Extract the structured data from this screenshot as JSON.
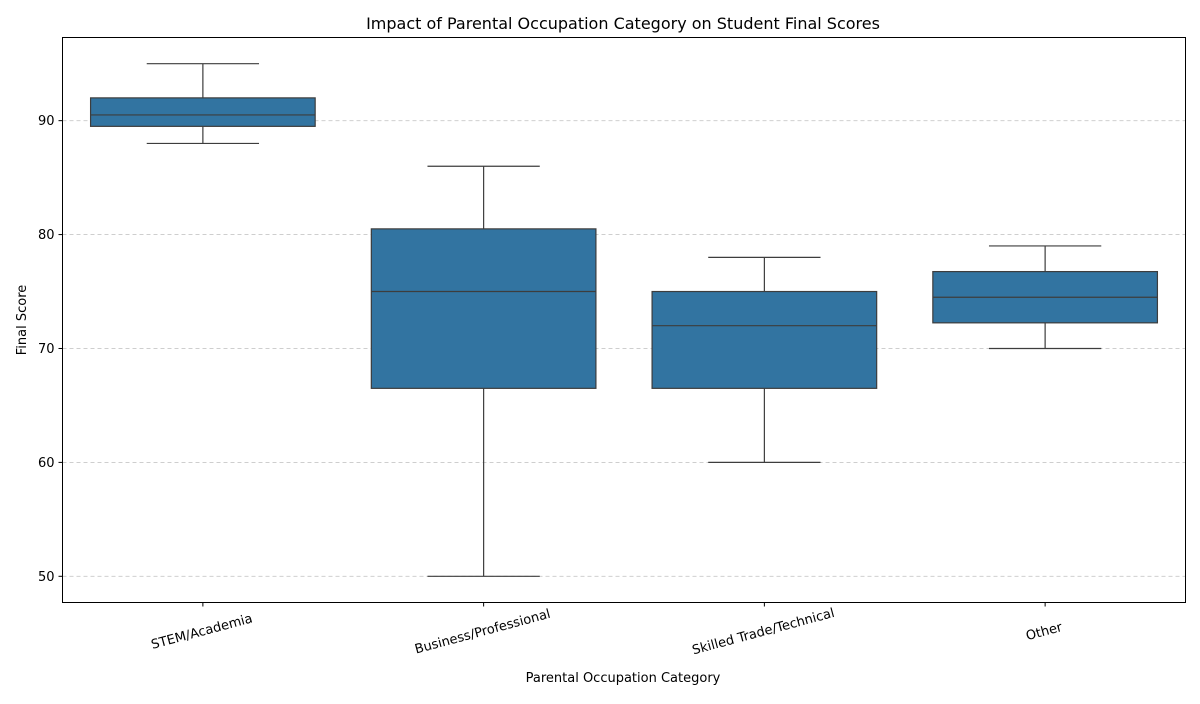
{
  "chart_data": {
    "type": "box",
    "title": "Impact of Parental Occupation Category on Student Final Scores",
    "xlabel": "Parental Occupation Category",
    "ylabel": "Final Score",
    "ylim": [
      47.7,
      97.3
    ],
    "yticks": [
      50,
      60,
      70,
      80,
      90
    ],
    "grid": "y-dashed",
    "box_color": "#3274a1",
    "line_color": "#3d3d3d",
    "categories": [
      "STEM/Academia",
      "Business/Professional",
      "Skilled Trade/Technical",
      "Other"
    ],
    "boxes": [
      {
        "category": "STEM/Academia",
        "min": 88,
        "q1": 89.5,
        "median": 90.5,
        "q3": 92,
        "max": 95
      },
      {
        "category": "Business/Professional",
        "min": 50,
        "q1": 66.5,
        "median": 75,
        "q3": 80.5,
        "max": 86
      },
      {
        "category": "Skilled Trade/Technical",
        "min": 60,
        "q1": 66.5,
        "median": 72,
        "q3": 75,
        "max": 78
      },
      {
        "category": "Other",
        "min": 70,
        "q1": 72.25,
        "median": 74.5,
        "q3": 76.75,
        "max": 79
      }
    ]
  }
}
